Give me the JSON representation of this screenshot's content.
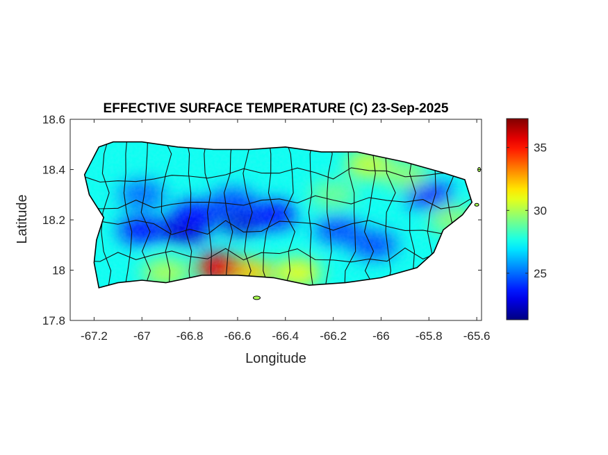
{
  "title": "EFFECTIVE SURFACE TEMPERATURE (C) 23-Sep-2025",
  "xlabel": "Longitude",
  "ylabel": "Latitude",
  "chart_data": {
    "type": "heatmap",
    "title": "EFFECTIVE SURFACE TEMPERATURE (C) 23-Sep-2025",
    "xlabel": "Longitude",
    "ylabel": "Latitude",
    "xlim": [
      -67.3,
      -65.58
    ],
    "ylim": [
      17.8,
      18.6
    ],
    "x_ticks": [
      -67.2,
      -67,
      -66.8,
      -66.6,
      -66.4,
      -66.2,
      -66,
      -65.8,
      -65.6
    ],
    "x_tick_labels": [
      "-67.2",
      "-67",
      "-66.8",
      "-66.6",
      "-66.4",
      "-66.2",
      "-66",
      "-65.8",
      "-65.6"
    ],
    "y_ticks": [
      17.8,
      18,
      18.2,
      18.4,
      18.6
    ],
    "y_tick_labels": [
      "17.8",
      "18",
      "18.2",
      "18.4",
      "18.6"
    ],
    "colorbar": {
      "colormap": "jet",
      "clim": [
        21.3,
        37.3
      ],
      "ticks": [
        25,
        30,
        35
      ],
      "tick_labels": [
        "25",
        "30",
        "35"
      ]
    },
    "colors": [
      "#00008f",
      "#0000ff",
      "#00ffff",
      "#ffff00",
      "#ff0000",
      "#800000"
    ],
    "island_outline": [
      [
        -67.24,
        18.38
      ],
      [
        -67.18,
        18.49
      ],
      [
        -67.12,
        18.51
      ],
      [
        -67.0,
        18.51
      ],
      [
        -66.85,
        18.49
      ],
      [
        -66.7,
        18.48
      ],
      [
        -66.55,
        18.48
      ],
      [
        -66.4,
        18.49
      ],
      [
        -66.25,
        18.47
      ],
      [
        -66.1,
        18.47
      ],
      [
        -66.0,
        18.45
      ],
      [
        -65.9,
        18.43
      ],
      [
        -65.75,
        18.39
      ],
      [
        -65.65,
        18.36
      ],
      [
        -65.62,
        18.27
      ],
      [
        -65.66,
        18.22
      ],
      [
        -65.74,
        18.16
      ],
      [
        -65.78,
        18.07
      ],
      [
        -65.85,
        18.01
      ],
      [
        -66.0,
        17.97
      ],
      [
        -66.15,
        17.95
      ],
      [
        -66.3,
        17.94
      ],
      [
        -66.45,
        17.97
      ],
      [
        -66.6,
        17.98
      ],
      [
        -66.75,
        17.98
      ],
      [
        -66.9,
        17.95
      ],
      [
        -67.0,
        17.96
      ],
      [
        -67.1,
        17.95
      ],
      [
        -67.18,
        17.93
      ],
      [
        -67.2,
        18.03
      ],
      [
        -67.19,
        18.12
      ],
      [
        -67.16,
        18.21
      ],
      [
        -67.22,
        18.3
      ]
    ],
    "temperature_features": [
      {
        "x": -66.82,
        "y": 18.16,
        "value": 22.5
      },
      {
        "x": -67.0,
        "y": 18.16,
        "value": 23.5
      },
      {
        "x": -66.58,
        "y": 18.2,
        "value": 22.5
      },
      {
        "x": -66.45,
        "y": 18.22,
        "value": 23.5
      },
      {
        "x": -66.62,
        "y": 18.27,
        "value": 24.5
      },
      {
        "x": -66.78,
        "y": 18.22,
        "value": 23.5
      },
      {
        "x": -66.18,
        "y": 18.16,
        "value": 24.5
      },
      {
        "x": -66.03,
        "y": 18.1,
        "value": 24.5
      },
      {
        "x": -65.8,
        "y": 18.3,
        "value": 23.5
      },
      {
        "x": -67.0,
        "y": 18.3,
        "value": 25.0
      },
      {
        "x": -66.55,
        "y": 17.99,
        "value": 32.0
      },
      {
        "x": -66.35,
        "y": 17.99,
        "value": 31.0
      },
      {
        "x": -66.9,
        "y": 17.99,
        "value": 30.0
      },
      {
        "x": -66.05,
        "y": 18.42,
        "value": 30.5
      },
      {
        "x": -65.9,
        "y": 18.38,
        "value": 29.5
      },
      {
        "x": -65.7,
        "y": 18.2,
        "value": 29.5
      },
      {
        "x": -66.2,
        "y": 18.3,
        "value": 29.0
      },
      {
        "x": -66.68,
        "y": 18.01,
        "value": 35.5
      }
    ],
    "grid": false
  }
}
